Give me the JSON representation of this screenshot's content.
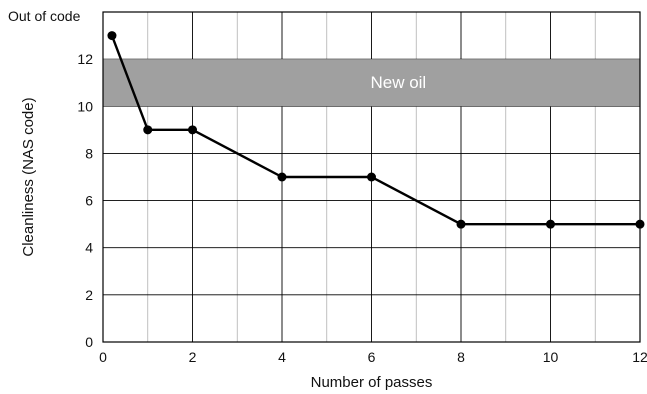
{
  "chart_data": {
    "type": "line",
    "xlabel": "Number of passes",
    "ylabel": "Cleanliness (NAS code)",
    "xlim": [
      0,
      12
    ],
    "ylim": [
      0,
      14
    ],
    "x_ticks": [
      "0",
      "2",
      "4",
      "6",
      "8",
      "10",
      "12"
    ],
    "y_ticks": [
      "0",
      "2",
      "4",
      "6",
      "8",
      "10",
      "12"
    ],
    "y_top_label": "Out of code",
    "grid": true,
    "band": {
      "label": "New oil",
      "y_range": [
        10,
        12
      ],
      "color": "#a0a0a0"
    },
    "series": [
      {
        "color": "#000000",
        "points": [
          {
            "x": 0.2,
            "y": 13
          },
          {
            "x": 1,
            "y": 9
          },
          {
            "x": 2,
            "y": 9
          },
          {
            "x": 4,
            "y": 7
          },
          {
            "x": 6,
            "y": 7
          },
          {
            "x": 8,
            "y": 5
          },
          {
            "x": 10,
            "y": 5
          },
          {
            "x": 12,
            "y": 5
          }
        ]
      }
    ]
  }
}
